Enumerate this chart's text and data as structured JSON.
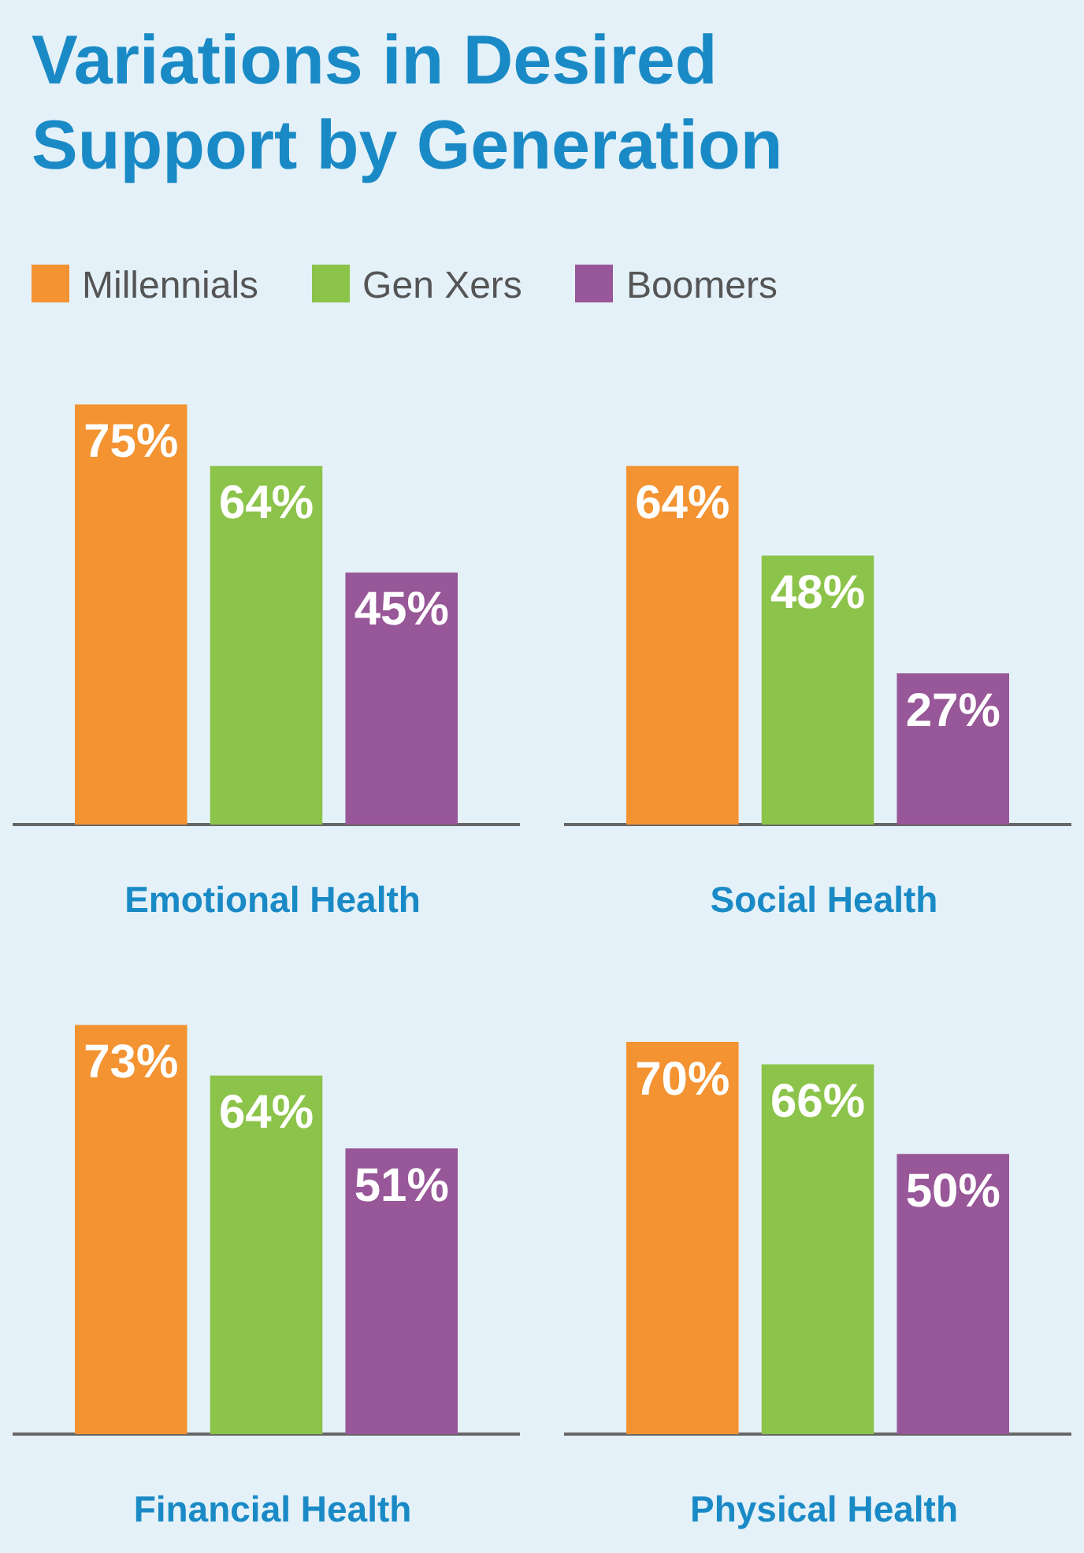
{
  "chart_data": [
    {
      "type": "bar",
      "title": "Variations in Desired Support by Generation",
      "xlabel": "Emotional Health",
      "categories": [
        null
      ],
      "legend": "top",
      "grid": false,
      "series": [
        {
          "name": "Millennials",
          "color": "#f39332",
          "values": [
            75
          ],
          "value_labels": [
            "75%"
          ]
        },
        {
          "name": "Gen Xers",
          "color": "#8cc34a",
          "values": [
            64
          ],
          "value_labels": [
            "64%"
          ]
        },
        {
          "name": "Boomers",
          "color": "#985798",
          "values": [
            45
          ],
          "value_labels": [
            "45%"
          ]
        }
      ]
    },
    {
      "type": "bar",
      "xlabel": "Social Health",
      "categories": [
        null
      ],
      "grid": false,
      "series": [
        {
          "color": "#f39332",
          "values": [
            64
          ],
          "value_labels": [
            "64%"
          ]
        },
        {
          "color": "#8cc34a",
          "values": [
            48
          ],
          "value_labels": [
            "48%"
          ]
        },
        {
          "color": "#985798",
          "values": [
            27
          ],
          "value_labels": [
            "27%"
          ]
        }
      ]
    },
    {
      "type": "bar",
      "xlabel": "Financial Health",
      "categories": [
        null
      ],
      "grid": false,
      "series": [
        {
          "color": "#f39332",
          "values": [
            73
          ],
          "value_labels": [
            "73%"
          ]
        },
        {
          "color": "#8cc34a",
          "values": [
            64
          ],
          "value_labels": [
            "64%"
          ]
        },
        {
          "color": "#985798",
          "values": [
            51
          ],
          "value_labels": [
            "51%"
          ]
        }
      ]
    },
    {
      "type": "bar",
      "xlabel": "Physical Health",
      "categories": [
        null
      ],
      "grid": false,
      "series": [
        {
          "color": "#f39332",
          "values": [
            70
          ],
          "value_labels": [
            "70%"
          ]
        },
        {
          "color": "#8cc34a",
          "values": [
            66
          ],
          "value_labels": [
            "66%"
          ]
        },
        {
          "color": "#985798",
          "values": [
            50
          ],
          "value_labels": [
            "50%"
          ]
        }
      ]
    }
  ]
}
